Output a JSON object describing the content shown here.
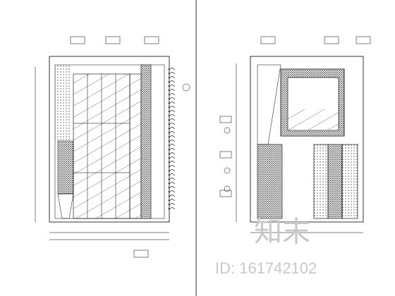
{
  "watermark": {
    "brand": "知末",
    "id": "ID: 161742102"
  }
}
